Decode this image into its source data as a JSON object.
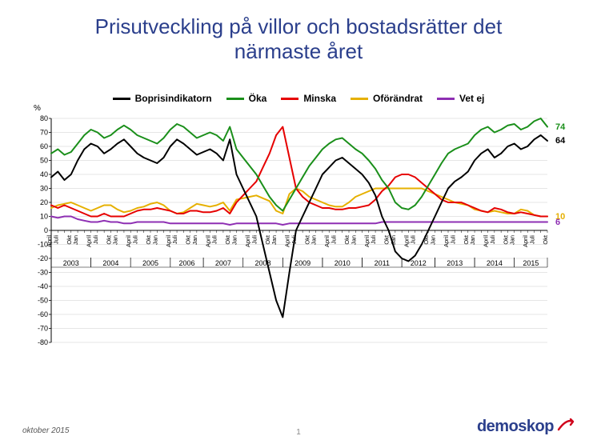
{
  "title_line1": "Prisutveckling på villor och bostadsrätter det",
  "title_line2": "närmaste året",
  "y_axis_label": "%",
  "footer_date": "oktober 2015",
  "footer_page": "1",
  "logo_text": "demoskop",
  "legend": {
    "items": [
      {
        "label": "Boprisindikatorn",
        "color": "#000000"
      },
      {
        "label": "Öka",
        "color": "#1a8f1a"
      },
      {
        "label": "Minska",
        "color": "#e60000"
      },
      {
        "label": "Oförändrat",
        "color": "#e6b000"
      },
      {
        "label": "Vet ej",
        "color": "#8e2fb3"
      }
    ]
  },
  "chart": {
    "type": "line",
    "ylim": [
      -80,
      80
    ],
    "ytick_step": 10,
    "background_color": "#ffffff",
    "grid_color": "#cccccc",
    "axis_color": "#000000",
    "tick_font_size": 9,
    "line_width": 2.0,
    "title_color": "#2b3f8c",
    "title_fontsize": 26,
    "legend_fontsize": 12,
    "x_labels": {
      "months": [
        "April",
        "Juli",
        "Okt",
        "Jan",
        "April",
        "Juli",
        "Okt",
        "Jan",
        "April",
        "Juli",
        "Okt",
        "Jan",
        "April",
        "Juli",
        "Okt",
        "Jan",
        "April",
        "Juli",
        "Okt",
        "Jan",
        "April",
        "Juli",
        "Okt",
        "Jan",
        "April",
        "Juli",
        "Okt",
        "Jan",
        "April",
        "Juli",
        "Okt",
        "Jan",
        "April",
        "Juli",
        "Okt",
        "Jan",
        "April",
        "Juli",
        "Okt",
        "Jan",
        "April",
        "Juli",
        "Okt",
        "Jan",
        "April",
        "Juli",
        "Okt",
        "Jan",
        "April",
        "Juli",
        "Okt"
      ],
      "years": [
        "2003",
        "2004",
        "2005",
        "2006",
        "2007",
        "2008",
        "2009",
        "2010",
        "2011",
        "2012",
        "2013",
        "2014",
        "2015"
      ]
    },
    "end_labels": [
      {
        "value": "74",
        "y": 74,
        "color": "#1a8f1a"
      },
      {
        "value": "64",
        "y": 64,
        "color": "#000000"
      },
      {
        "value": "10",
        "y": 10,
        "color": "#e6b000"
      },
      {
        "value": "6",
        "y": 6,
        "color": "#8e2fb3"
      }
    ],
    "series": {
      "boprisindikatorn": {
        "color": "#000000",
        "values": [
          38,
          42,
          36,
          40,
          50,
          58,
          62,
          60,
          55,
          58,
          62,
          65,
          60,
          55,
          52,
          50,
          48,
          52,
          60,
          65,
          62,
          58,
          54,
          56,
          58,
          55,
          50,
          65,
          40,
          30,
          20,
          10,
          -10,
          -30,
          -50,
          -62,
          -30,
          0,
          10,
          20,
          30,
          40,
          45,
          50,
          52,
          48,
          44,
          40,
          34,
          25,
          10,
          0,
          -15,
          -20,
          -22,
          -18,
          -10,
          0,
          10,
          20,
          30,
          35,
          38,
          42,
          50,
          55,
          58,
          52,
          55,
          60,
          62,
          58,
          60,
          65,
          68,
          64
        ]
      },
      "oka": {
        "color": "#1a8f1a",
        "values": [
          55,
          58,
          54,
          56,
          62,
          68,
          72,
          70,
          66,
          68,
          72,
          75,
          72,
          68,
          66,
          64,
          62,
          66,
          72,
          76,
          74,
          70,
          66,
          68,
          70,
          68,
          64,
          74,
          58,
          52,
          46,
          40,
          32,
          24,
          18,
          14,
          22,
          30,
          38,
          46,
          52,
          58,
          62,
          65,
          66,
          62,
          58,
          55,
          50,
          44,
          36,
          30,
          20,
          16,
          15,
          18,
          24,
          32,
          40,
          48,
          55,
          58,
          60,
          62,
          68,
          72,
          74,
          70,
          72,
          75,
          76,
          72,
          74,
          78,
          80,
          74
        ]
      },
      "minska": {
        "color": "#e60000",
        "values": [
          18,
          16,
          18,
          16,
          14,
          12,
          10,
          10,
          12,
          10,
          10,
          10,
          12,
          14,
          15,
          15,
          16,
          15,
          14,
          12,
          12,
          14,
          14,
          13,
          13,
          14,
          16,
          12,
          20,
          25,
          30,
          35,
          45,
          55,
          68,
          74,
          52,
          30,
          24,
          20,
          18,
          16,
          16,
          15,
          15,
          16,
          16,
          17,
          18,
          22,
          28,
          32,
          38,
          40,
          40,
          38,
          34,
          30,
          26,
          22,
          20,
          20,
          20,
          18,
          16,
          14,
          13,
          16,
          15,
          13,
          12,
          13,
          12,
          11,
          10,
          10
        ]
      },
      "oforandrat": {
        "color": "#e6b000",
        "values": [
          16,
          18,
          19,
          20,
          18,
          16,
          14,
          16,
          18,
          18,
          15,
          13,
          14,
          16,
          17,
          19,
          20,
          18,
          14,
          12,
          13,
          16,
          19,
          18,
          17,
          18,
          20,
          14,
          22,
          23,
          24,
          25,
          23,
          21,
          14,
          12,
          26,
          30,
          28,
          24,
          22,
          20,
          18,
          17,
          17,
          20,
          24,
          26,
          28,
          30,
          30,
          30,
          30,
          30,
          30,
          30,
          30,
          28,
          26,
          24,
          22,
          20,
          19,
          18,
          15,
          14,
          13,
          14,
          13,
          12,
          12,
          15,
          14,
          11,
          10,
          10
        ]
      },
      "vetej": {
        "color": "#8e2fb3",
        "values": [
          10,
          9,
          10,
          10,
          8,
          7,
          6,
          6,
          7,
          6,
          6,
          5,
          5,
          6,
          6,
          6,
          6,
          6,
          5,
          5,
          5,
          5,
          5,
          5,
          5,
          5,
          5,
          4,
          5,
          5,
          5,
          5,
          5,
          5,
          5,
          4,
          5,
          5,
          5,
          5,
          5,
          5,
          5,
          5,
          5,
          5,
          5,
          5,
          5,
          5,
          6,
          6,
          6,
          6,
          6,
          6,
          6,
          6,
          6,
          6,
          6,
          6,
          6,
          6,
          6,
          6,
          6,
          6,
          6,
          6,
          6,
          6,
          6,
          6,
          6,
          6
        ]
      }
    }
  }
}
